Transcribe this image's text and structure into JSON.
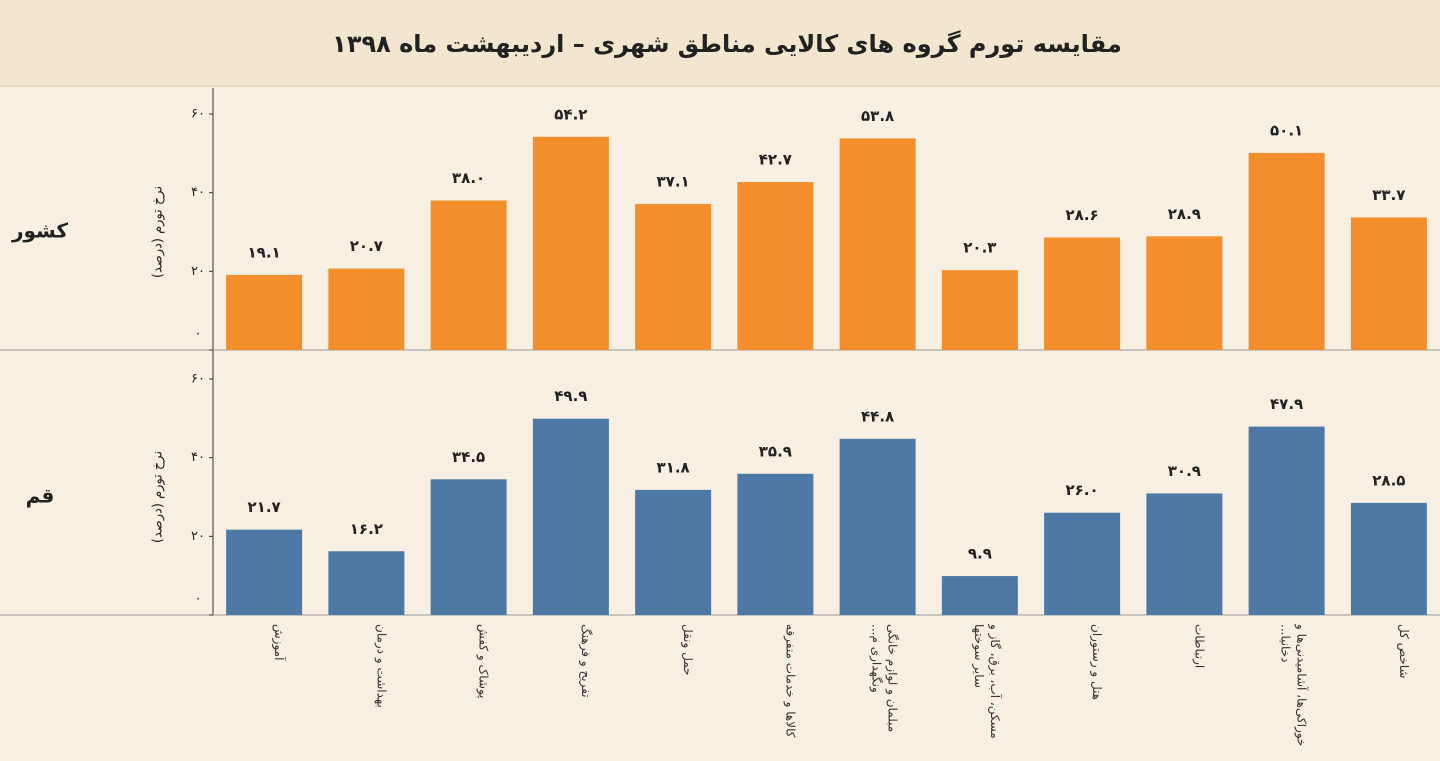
{
  "chart_data": {
    "type": "bar",
    "title": "مقایسه تورم گروه های کالایی  مناطق شهری – اردیبهشت ماه ۱۳۹۸",
    "ylabel": "نرخ تورم (درصد)",
    "categories": [
      "آموزش",
      "بهداشت و درمان",
      "پوشاک و کفش",
      "تفریح و فرهنگ",
      "حمل ونقل",
      "کالاها و خدمات متفرقه",
      "مبلمان و لوازم خانگی ونگهداری م...",
      "مسکن، آب، برق، گاز و سایر سوختها",
      "هتل و رستوران",
      "ارتباطات",
      "خوراکی‌ها، آشامیدنی‌ها و دخانیا...",
      "شاخص کل"
    ],
    "series": [
      {
        "name": "کشور",
        "color": "#f28e2b",
        "values": [
          19.1,
          20.7,
          38.0,
          54.2,
          37.1,
          42.7,
          53.8,
          20.3,
          28.6,
          28.9,
          50.1,
          33.7
        ],
        "value_labels": [
          "۱۹.۱",
          "۲۰.۷",
          "۳۸.۰",
          "۵۴.۲",
          "۳۷.۱",
          "۴۲.۷",
          "۵۳.۸",
          "۲۰.۳",
          "۲۸.۶",
          "۲۸.۹",
          "۵۰.۱",
          "۳۳.۷"
        ]
      },
      {
        "name": "قم",
        "color": "#4e79a7",
        "values": [
          21.7,
          16.2,
          34.5,
          49.9,
          31.8,
          35.9,
          44.8,
          9.9,
          26.0,
          30.9,
          47.9,
          28.5
        ],
        "value_labels": [
          "۲۱.۷",
          "۱۶.۲",
          "۳۴.۵",
          "۴۹.۹",
          "۳۱.۸",
          "۳۵.۹",
          "۴۴.۸",
          "۹.۹",
          "۲۶.۰",
          "۳۰.۹",
          "۴۷.۹",
          "۲۸.۵"
        ]
      }
    ],
    "ylim": [
      0,
      60
    ],
    "yticks": [
      {
        "value": 0,
        "label": "۰"
      },
      {
        "value": 20,
        "label": "۲۰"
      },
      {
        "value": 40,
        "label": "۴۰"
      },
      {
        "value": 60,
        "label": "۶۰"
      }
    ]
  }
}
